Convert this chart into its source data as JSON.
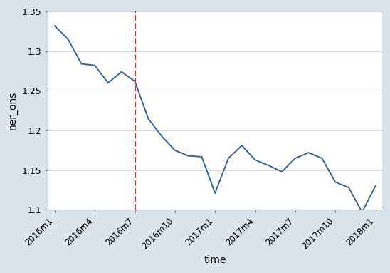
{
  "title": "",
  "xlabel": "time",
  "ylabel": "ner_ons",
  "line_color": "#3a6490",
  "line_width": 1.4,
  "vline_color": "#cc3333",
  "vline_style": "--",
  "vline_x": 6,
  "plot_bg_color": "#ffffff",
  "fig_bg_color": "#d9e4ee",
  "ylim": [
    1.1,
    1.35
  ],
  "yticks": [
    1.1,
    1.15,
    1.2,
    1.25,
    1.3,
    1.35
  ],
  "ytick_labels": [
    "1.1",
    "1.15",
    "1.2",
    "1.25",
    "1.3",
    "1.35"
  ],
  "y_values": [
    1.332,
    1.315,
    1.284,
    1.282,
    1.26,
    1.274,
    1.262,
    1.215,
    1.193,
    1.175,
    1.168,
    1.167,
    1.121,
    1.165,
    1.181,
    1.163,
    1.156,
    1.148,
    1.165,
    1.172,
    1.165,
    1.135,
    1.128,
    1.097,
    1.13
  ],
  "tick_positions": [
    0,
    3,
    6,
    9,
    12,
    15,
    18,
    21,
    24
  ],
  "tick_labels": [
    "2016m1",
    "2016m4",
    "2016m7",
    "2016m10",
    "2017m1",
    "2017m4",
    "2017m7",
    "2017m10",
    "2018m1"
  ],
  "xlim": [
    -0.5,
    24.5
  ]
}
